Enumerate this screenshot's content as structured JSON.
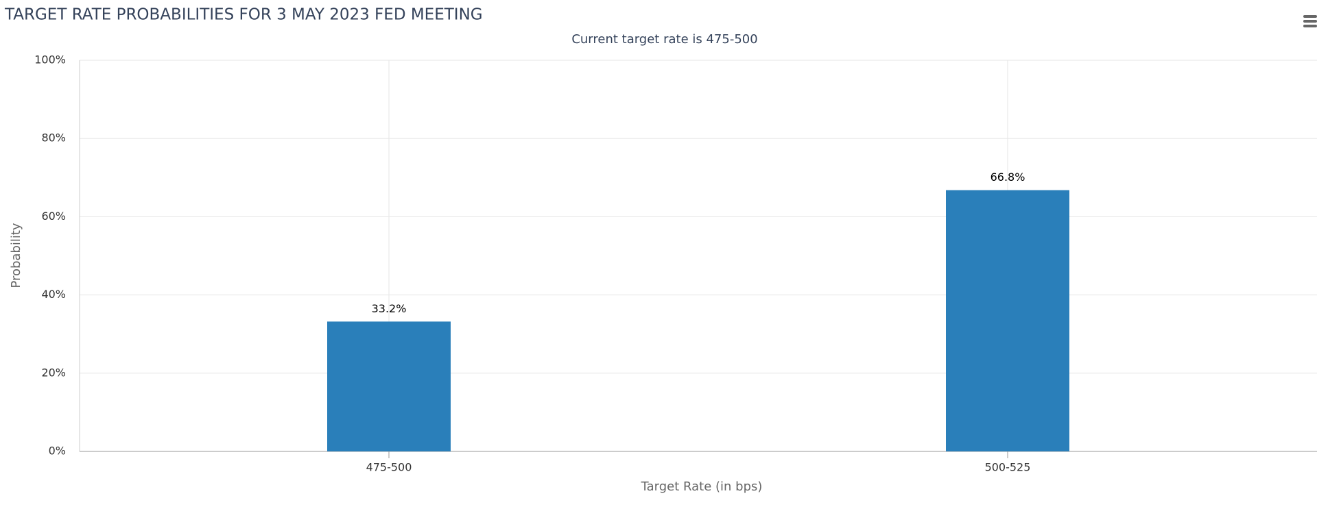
{
  "chart_data": {
    "type": "bar",
    "title": "TARGET RATE PROBABILITIES FOR 3 MAY 2023 FED MEETING",
    "subtitle": "Current target rate is 475-500",
    "x_label": "Target Rate (in bps)",
    "y_label": "Probability",
    "categories": [
      "475-500",
      "500-525"
    ],
    "values": [
      33.2,
      66.8
    ],
    "value_labels": [
      "33.2%",
      "66.8%"
    ],
    "color": "#2a7fba",
    "ylim": [
      0,
      100
    ],
    "yticks": [
      {
        "value": 0,
        "label": "0%"
      },
      {
        "value": 20,
        "label": "20%"
      },
      {
        "value": 40,
        "label": "40%"
      },
      {
        "value": 60,
        "label": "60%"
      },
      {
        "value": 80,
        "label": "80%"
      },
      {
        "value": 100,
        "label": "100%"
      }
    ],
    "grid": true
  }
}
